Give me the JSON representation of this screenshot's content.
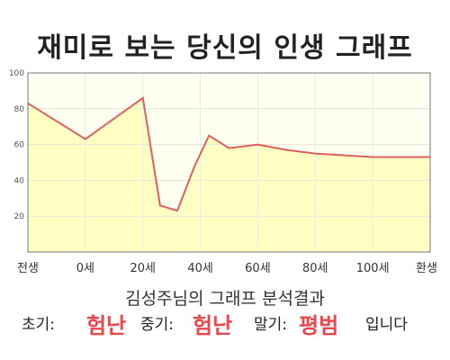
{
  "title": "재미로 보는 당신의 인생 그래프",
  "chart_data": {
    "type": "area",
    "title": "재미로 보는 당신의 인생 그래프",
    "xlabel": "",
    "ylabel": "",
    "ylim": [
      0,
      100
    ],
    "y_ticks": [
      "20",
      "40",
      "60",
      "80",
      "100"
    ],
    "x_tick_labels": [
      "전생",
      "0세",
      "20세",
      "40세",
      "60세",
      "80세",
      "100세",
      "환생"
    ],
    "x_tick_ages": [
      -20,
      0,
      20,
      40,
      60,
      80,
      100,
      120
    ],
    "grid": true,
    "line_color": "#e06060",
    "fill_color": "#ffffc4",
    "series": [
      {
        "x": [
          -20,
          0,
          20,
          26,
          32,
          38,
          43,
          50,
          60,
          70,
          80,
          100,
          120
        ],
        "values": [
          83,
          63,
          86,
          26,
          23,
          48,
          65,
          58,
          60,
          57,
          55,
          53,
          53
        ]
      }
    ]
  },
  "summary": "김성주님의 그래프 분석결과",
  "result": {
    "early_label": "초기:",
    "early_value": "험난",
    "middle_label": "중기:",
    "middle_value": "험난",
    "late_label": "말기:",
    "late_value": "평범",
    "ending": "입니다"
  },
  "colors": {
    "highlight": "#e8474d",
    "line": "#e06060",
    "fill": "#ffffc4"
  }
}
